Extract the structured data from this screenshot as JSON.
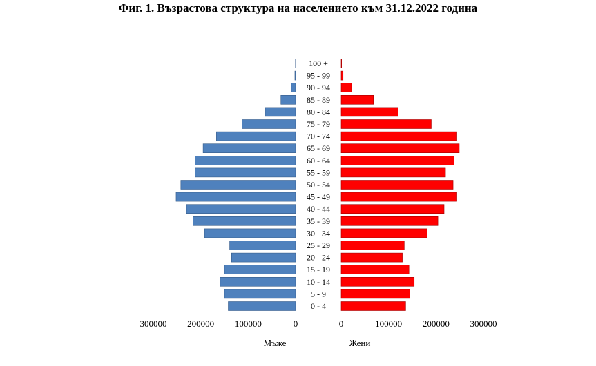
{
  "chart_data": {
    "type": "bar",
    "title": "Фиг. 1. Възрастова структура на населението към 31.12.2022 година",
    "categories": [
      "0 - 4",
      "5 - 9",
      "10 - 14",
      "15 - 19",
      "20 - 24",
      "25 - 29",
      "30 - 34",
      "35 - 39",
      "40 - 44",
      "45 - 49",
      "50 - 54",
      "55 - 59",
      "60 - 64",
      "65 - 69",
      "70 - 74",
      "75 - 79",
      "80 - 84",
      "85 - 89",
      "90 - 94",
      "95 - 99",
      "100 +"
    ],
    "series": [
      {
        "name": "Мъже",
        "color": "#4f81bd",
        "values": [
          142000,
          150000,
          159000,
          150000,
          135000,
          139000,
          192000,
          216000,
          230000,
          252000,
          242000,
          212000,
          212000,
          195000,
          167000,
          113000,
          64000,
          31000,
          9000,
          1500,
          300
        ]
      },
      {
        "name": "Жени",
        "color": "#ff0000",
        "values": [
          136000,
          145000,
          154000,
          143000,
          129000,
          133000,
          181000,
          204000,
          217000,
          244000,
          236000,
          220000,
          238000,
          249000,
          244000,
          190000,
          120000,
          68000,
          22000,
          4000,
          1000
        ]
      }
    ],
    "x_ticks_left": [
      "300000",
      "200000",
      "100000",
      "0"
    ],
    "x_ticks_right": [
      "0",
      "100000",
      "200000",
      "300000"
    ],
    "xlim": [
      0,
      300000
    ],
    "xlabel_left": "Мъже",
    "xlabel_right": "Жени",
    "grid": false,
    "legend": "none"
  }
}
